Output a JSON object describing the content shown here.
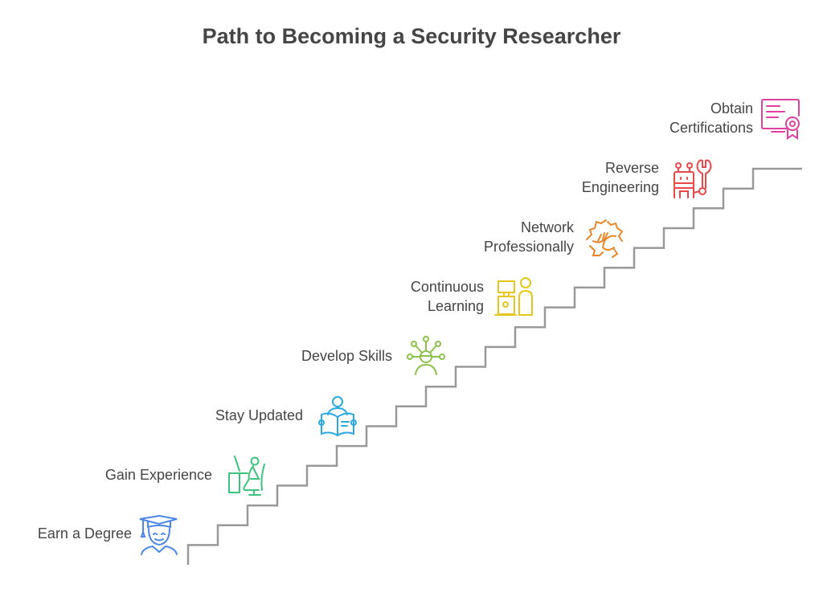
{
  "title": "Path to Becoming a Security Researcher",
  "steps": [
    {
      "label_lines": [
        "Earn a Degree"
      ],
      "icon": "graduate-icon",
      "color": "#4a86e8"
    },
    {
      "label_lines": [
        "Gain Experience"
      ],
      "icon": "person-at-desk-icon",
      "color": "#3cc47c"
    },
    {
      "label_lines": [
        "Stay Updated"
      ],
      "icon": "person-reading-icon",
      "color": "#29a9e0"
    },
    {
      "label_lines": [
        "Develop Skills"
      ],
      "icon": "person-network-icon",
      "color": "#8bc34a"
    },
    {
      "label_lines": [
        "Continuous",
        "Learning"
      ],
      "icon": "person-at-computer-icon",
      "color": "#e6c619"
    },
    {
      "label_lines": [
        "Network",
        "Professionally"
      ],
      "icon": "handshake-icon",
      "color": "#e8862a"
    },
    {
      "label_lines": [
        "Reverse",
        "Engineering"
      ],
      "icon": "robot-wrench-icon",
      "color": "#e8484a"
    },
    {
      "label_lines": [
        "Obtain",
        "Certifications"
      ],
      "icon": "certificate-icon",
      "color": "#e040a0"
    }
  ],
  "stair_color": "#999999"
}
